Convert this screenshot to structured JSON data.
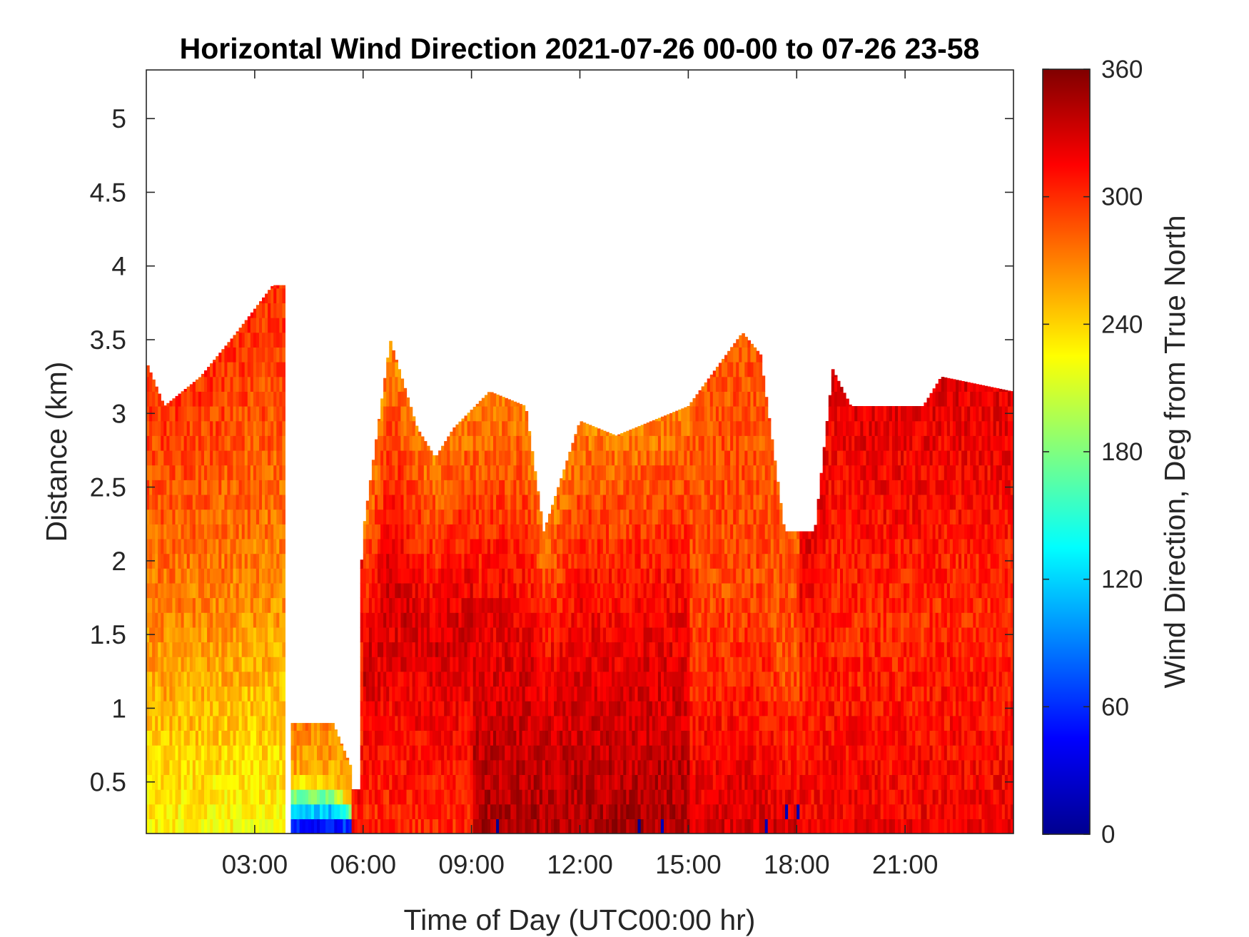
{
  "chart_data": {
    "type": "heatmap",
    "title": "Horizontal Wind Direction 2021-07-26 00-00 to 07-26 23-58",
    "xlabel": "Time of Day (UTC00:00 hr)",
    "ylabel": "Distance (km)",
    "colorbar_label": "Wind Direction, Deg from True North",
    "colormap": "jet",
    "xlim": [
      "00:00",
      "24:00"
    ],
    "ylim": [
      0.15,
      5.33
    ],
    "clim": [
      0,
      360
    ],
    "x_ticks": [
      "03:00",
      "06:00",
      "09:00",
      "12:00",
      "15:00",
      "18:00",
      "21:00"
    ],
    "y_ticks": [
      "0.5",
      "1",
      "1.5",
      "2",
      "2.5",
      "3",
      "3.5",
      "4",
      "4.5",
      "5"
    ],
    "colorbar_ticks": [
      "0",
      "60",
      "120",
      "180",
      "240",
      "300",
      "360"
    ],
    "grid": false,
    "data_top_km": [
      {
        "time": "00:00",
        "top_km": 3.35
      },
      {
        "time": "00:30",
        "top_km": 3.05
      },
      {
        "time": "01:30",
        "top_km": 3.25
      },
      {
        "time": "02:30",
        "top_km": 3.55
      },
      {
        "time": "03:30",
        "top_km": 3.87
      },
      {
        "time": "03:50",
        "top_km": 3.87
      },
      {
        "time": "04:00",
        "top_km": 0.9
      },
      {
        "time": "05:10",
        "top_km": 0.9
      },
      {
        "time": "05:40",
        "top_km": 0.6
      },
      {
        "time": "06:00",
        "top_km": 2.2
      },
      {
        "time": "06:45",
        "top_km": 3.5
      },
      {
        "time": "07:30",
        "top_km": 2.9
      },
      {
        "time": "08:00",
        "top_km": 2.7
      },
      {
        "time": "08:30",
        "top_km": 2.9
      },
      {
        "time": "09:30",
        "top_km": 3.15
      },
      {
        "time": "10:30",
        "top_km": 3.05
      },
      {
        "time": "11:00",
        "top_km": 2.2
      },
      {
        "time": "12:00",
        "top_km": 2.95
      },
      {
        "time": "13:00",
        "top_km": 2.85
      },
      {
        "time": "15:00",
        "top_km": 3.05
      },
      {
        "time": "16:30",
        "top_km": 3.55
      },
      {
        "time": "17:00",
        "top_km": 3.4
      },
      {
        "time": "17:40",
        "top_km": 2.2
      },
      {
        "time": "18:30",
        "top_km": 2.2
      },
      {
        "time": "19:00",
        "top_km": 3.3
      },
      {
        "time": "19:30",
        "top_km": 3.05
      },
      {
        "time": "21:30",
        "top_km": 3.05
      },
      {
        "time": "22:00",
        "top_km": 3.25
      },
      {
        "time": "23:58",
        "top_km": 3.15
      }
    ],
    "direction_profile_deg": [
      {
        "period": "00:00-03:50",
        "near_surface": 225,
        "mid": 270,
        "upper": 300
      },
      {
        "period": "04:00-05:40",
        "near_surface": 20,
        "mid": 255,
        "upper": 270
      },
      {
        "period": "06:00-09:00",
        "near_surface": 300,
        "mid": 330,
        "upper": 270
      },
      {
        "period": "09:00-15:00",
        "near_surface": 345,
        "mid": 320,
        "upper": 270
      },
      {
        "period": "15:00-18:00",
        "near_surface": 330,
        "mid": 290,
        "upper": 285
      },
      {
        "period": "18:00-24:00",
        "near_surface": 320,
        "mid": 300,
        "upper": 325
      }
    ]
  }
}
